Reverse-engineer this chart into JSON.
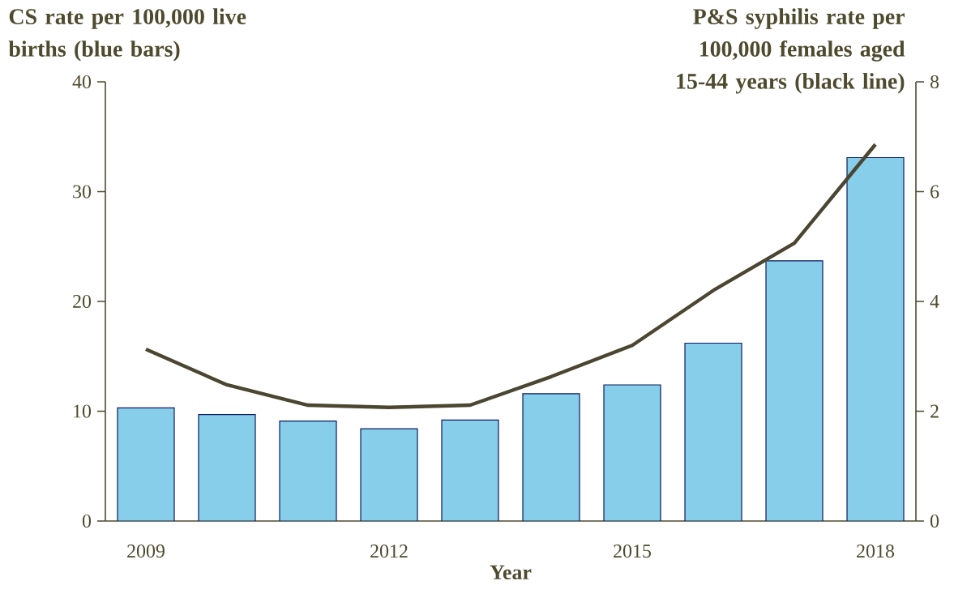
{
  "chart_data": {
    "type": "bar",
    "xlabel": "Year",
    "ylabel": "CS rate per 100,000 live births (blue bars)",
    "y2label": "P&S syphilis rate per 100,000 females aged 15-44 years (black line)",
    "categories": [
      "2009",
      null,
      null,
      "2012",
      null,
      null,
      "2015",
      null,
      null,
      "2018"
    ],
    "series": [
      {
        "color": "#87ceeb",
        "values": [
          10.3,
          9.7,
          9.1,
          8.4,
          9.2,
          11.6,
          12.4,
          16.2,
          23.7,
          33.1
        ]
      },
      {
        "type": "line",
        "axis": "y2",
        "color": "#4a4631",
        "values": [
          3.13,
          2.48,
          2.11,
          2.07,
          2.11,
          2.63,
          3.2,
          4.2,
          5.06,
          6.86
        ]
      }
    ],
    "ylim": [
      0,
      40
    ],
    "yticks": [
      0,
      10,
      20,
      30,
      40
    ],
    "y2lim": [
      0,
      8
    ],
    "y2ticks": [
      0,
      2,
      4,
      6,
      8
    ]
  }
}
